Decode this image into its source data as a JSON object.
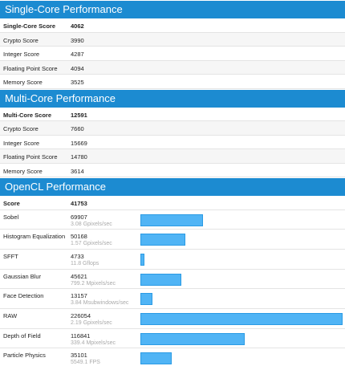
{
  "sections": [
    {
      "title": "Single-Core Performance",
      "rows": [
        {
          "label": "Single-Core Score",
          "value": 4062
        },
        {
          "label": "Crypto Score",
          "value": 3990
        },
        {
          "label": "Integer Score",
          "value": 4287
        },
        {
          "label": "Floating Point Score",
          "value": 4094
        },
        {
          "label": "Memory Score",
          "value": 3525
        }
      ]
    },
    {
      "title": "Multi-Core Performance",
      "rows": [
        {
          "label": "Multi-Core Score",
          "value": 12591
        },
        {
          "label": "Crypto Score",
          "value": 7660
        },
        {
          "label": "Integer Score",
          "value": 15669
        },
        {
          "label": "Floating Point Score",
          "value": 14780
        },
        {
          "label": "Memory Score",
          "value": 3614
        }
      ]
    },
    {
      "title": "OpenCL Performance",
      "rows": [
        {
          "label": "Score",
          "value": 41753
        },
        {
          "label": "Sobel",
          "value": 69907,
          "rate": "3.08 Gpixels/sec"
        },
        {
          "label": "Histogram Equalization",
          "value": 50168,
          "rate": "1.57 Gpixels/sec"
        },
        {
          "label": "SFFT",
          "value": 4733,
          "rate": "11.8 Gflops"
        },
        {
          "label": "Gaussian Blur",
          "value": 45621,
          "rate": "799.2 Mpixels/sec"
        },
        {
          "label": "Face Detection",
          "value": 13157,
          "rate": "3.84 Msubwindows/sec"
        },
        {
          "label": "RAW",
          "value": 226054,
          "rate": "2.19 Gpixels/sec"
        },
        {
          "label": "Depth of Field",
          "value": 116841,
          "rate": "339.4 Mpixels/sec"
        },
        {
          "label": "Particle Physics",
          "value": 35101,
          "rate": "5549.1 FPS"
        }
      ]
    }
  ]
}
